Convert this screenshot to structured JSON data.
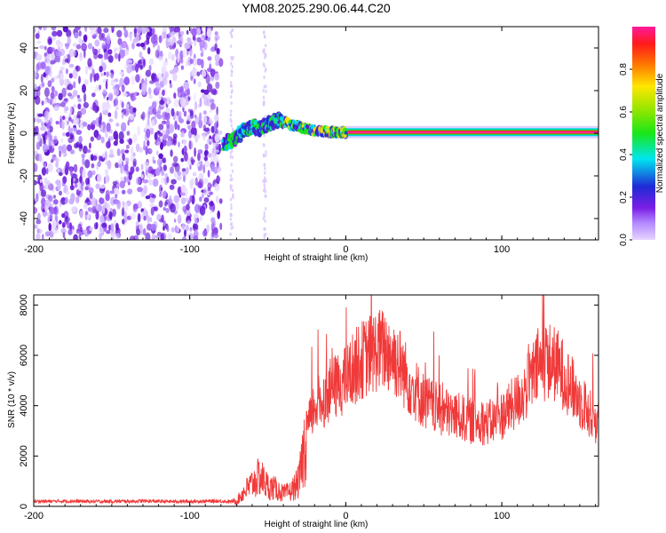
{
  "title": "YM08.2025.290.06.44.C20",
  "chart_data": [
    {
      "type": "heatmap",
      "name": "spectrogram",
      "title": "YM08.2025.290.06.44.C20",
      "xlabel": "Height of straight line (km)",
      "ylabel": "Frequency (Hz)",
      "xlim": [
        -200,
        162
      ],
      "ylim": [
        -50,
        50
      ],
      "x_ticks": [
        -200,
        -100,
        0,
        100
      ],
      "x_tick_labels": [
        "-200",
        "-100",
        "0",
        "100"
      ],
      "y_ticks": [
        -40,
        -20,
        0,
        20,
        40
      ],
      "y_tick_labels": [
        "-40",
        "-20",
        "0",
        "20",
        "40"
      ],
      "colorbar": {
        "label": "Normalized spectral amplitude",
        "range": [
          0,
          1
        ],
        "ticks": [
          0,
          0.2,
          0.4,
          0.6,
          0.8
        ],
        "tick_labels": [
          "0.0",
          "0.2",
          "0.4",
          "0.6",
          "0.8"
        ]
      },
      "signal_track": {
        "x": [
          -78,
          -72,
          -66,
          -60,
          -55,
          -50,
          -45,
          -40,
          -35,
          -30,
          -25,
          -20,
          -15,
          -10,
          -5,
          0,
          10,
          50,
          100,
          162
        ],
        "freq": [
          -5,
          -3,
          1,
          3,
          2,
          4,
          6,
          6,
          4,
          3,
          2,
          1,
          1,
          0.5,
          0.5,
          0.5,
          0.5,
          0.5,
          0.5,
          0.5
        ]
      },
      "noise_region_x": [
        -200,
        -80
      ]
    },
    {
      "type": "line",
      "name": "snr",
      "xlabel": "Height of straight line (km)",
      "ylabel": "SNR (10 * v/v)",
      "xlim": [
        -200,
        162
      ],
      "ylim": [
        0,
        8400
      ],
      "x_ticks": [
        -200,
        -100,
        0,
        100
      ],
      "x_tick_labels": [
        "-200",
        "-100",
        "0",
        "100"
      ],
      "y_ticks": [
        0,
        2000,
        4000,
        6000,
        8000
      ],
      "y_tick_labels": [
        "0",
        "2000",
        "4000",
        "6000",
        "8000"
      ],
      "color": "#f03a3a",
      "series": [
        {
          "name": "SNR",
          "x": [
            -200,
            -190,
            -180,
            -170,
            -160,
            -150,
            -140,
            -130,
            -120,
            -110,
            -100,
            -90,
            -80,
            -75,
            -70,
            -65,
            -60,
            -55,
            -50,
            -45,
            -40,
            -35,
            -30,
            -25,
            -20,
            -15,
            -10,
            -5,
            0,
            5,
            10,
            15,
            20,
            25,
            30,
            35,
            40,
            45,
            50,
            55,
            60,
            65,
            70,
            75,
            80,
            85,
            90,
            95,
            100,
            105,
            110,
            115,
            120,
            125,
            130,
            135,
            140,
            145,
            150,
            155,
            160
          ],
          "values": [
            200,
            200,
            210,
            200,
            190,
            200,
            200,
            210,
            200,
            190,
            200,
            200,
            210,
            190,
            200,
            600,
            900,
            1200,
            800,
            700,
            500,
            600,
            1000,
            3000,
            4000,
            4200,
            4600,
            4800,
            5000,
            5500,
            5800,
            6000,
            6200,
            6200,
            6000,
            5600,
            5000,
            4600,
            4200,
            4000,
            3800,
            3700,
            3600,
            3500,
            3400,
            3400,
            3300,
            3400,
            3600,
            3900,
            4200,
            4600,
            5200,
            5600,
            5800,
            5600,
            5200,
            4700,
            4200,
            3800,
            3400
          ]
        }
      ]
    }
  ]
}
